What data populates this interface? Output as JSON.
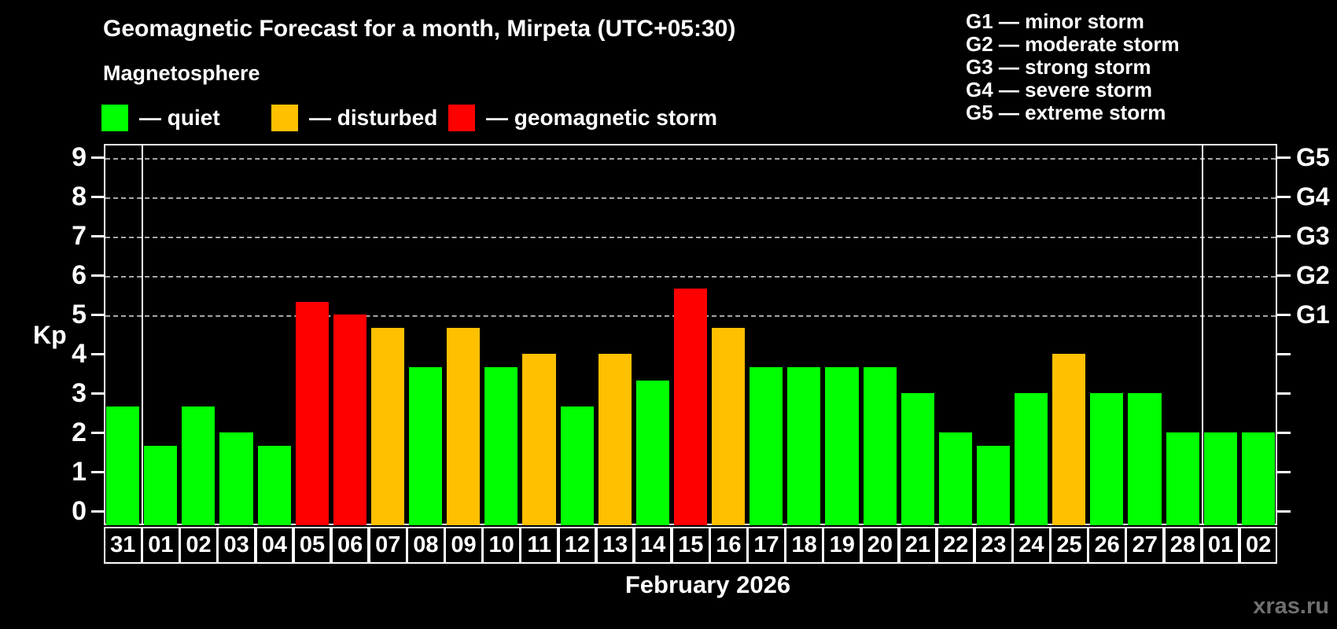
{
  "title": "Geomagnetic Forecast for a month, Mirpeta (UTC+05:30)",
  "subtitle": "Magnetosphere",
  "legend": {
    "quiet_label": "— quiet",
    "disturbed_label": "— disturbed",
    "storm_label": "— geomagnetic storm"
  },
  "g_legend": [
    "G1 — minor storm",
    "G2 — moderate storm",
    "G3 — strong storm",
    "G4 — severe storm",
    "G5 — extreme storm"
  ],
  "colors": {
    "quiet": "#00ff00",
    "disturbed": "#ffc000",
    "storm": "#ff0000",
    "background": "#000000",
    "axis": "#ffffff",
    "grid": "#a8a8a8",
    "watermark": "#6f6f6f"
  },
  "footer": {
    "month_label": "February 2026",
    "watermark": "xras.ru"
  },
  "chart_data": {
    "type": "bar",
    "title": "Geomagnetic Forecast for a month, Mirpeta (UTC+05:30)",
    "xlabel": "February 2026",
    "ylabel": "Kp",
    "ylim": [
      0,
      9.3
    ],
    "y_ticks": [
      0,
      1,
      2,
      3,
      4,
      5,
      6,
      7,
      8,
      9
    ],
    "grid_levels": [
      5,
      6,
      7,
      8,
      9
    ],
    "right_axis_labels": [
      "G1",
      "G2",
      "G3",
      "G4",
      "G5"
    ],
    "right_axis_kp_levels": [
      5,
      6,
      7,
      8,
      9
    ],
    "legend_position": "top",
    "grid": "dashed horizontal at Kp 5-9",
    "categories": [
      "31",
      "01",
      "02",
      "03",
      "04",
      "05",
      "06",
      "07",
      "08",
      "09",
      "10",
      "11",
      "12",
      "13",
      "14",
      "15",
      "16",
      "17",
      "18",
      "19",
      "20",
      "21",
      "22",
      "23",
      "24",
      "25",
      "26",
      "27",
      "28",
      "01",
      "02"
    ],
    "values": [
      2.67,
      1.67,
      2.67,
      2.0,
      1.67,
      5.33,
      5.0,
      4.67,
      3.67,
      4.67,
      3.67,
      4.0,
      2.67,
      4.0,
      3.33,
      5.67,
      4.67,
      3.67,
      3.67,
      3.67,
      3.67,
      3.0,
      2.0,
      1.67,
      3.0,
      4.0,
      3.0,
      3.0,
      2.0,
      2.0,
      2.0
    ],
    "statuses": [
      "quiet",
      "quiet",
      "quiet",
      "quiet",
      "quiet",
      "storm",
      "storm",
      "disturbed",
      "quiet",
      "disturbed",
      "quiet",
      "disturbed",
      "quiet",
      "disturbed",
      "quiet",
      "storm",
      "disturbed",
      "quiet",
      "quiet",
      "quiet",
      "quiet",
      "quiet",
      "quiet",
      "quiet",
      "quiet",
      "disturbed",
      "quiet",
      "quiet",
      "quiet",
      "quiet",
      "quiet"
    ],
    "month_separators_after_index": [
      0,
      28
    ]
  }
}
